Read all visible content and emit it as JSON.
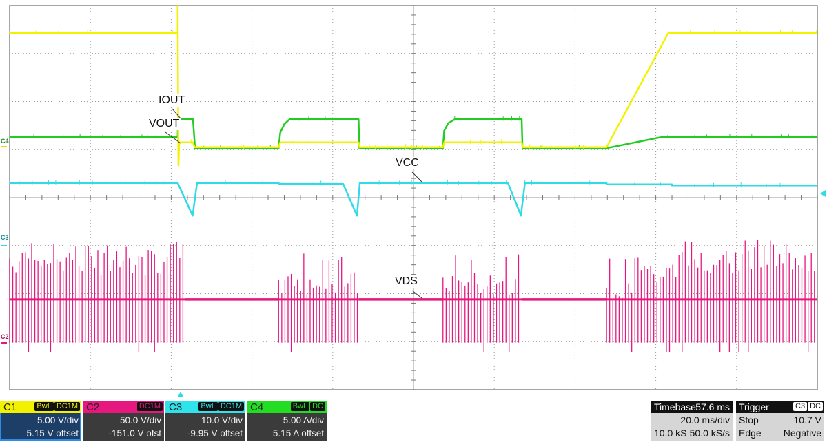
{
  "chart_data": {
    "type": "line",
    "grid": true,
    "divisions": {
      "horizontal": 10,
      "vertical": 8
    },
    "x": {
      "unit": "ms",
      "range": [
        -42.4,
        157.6
      ],
      "per_div": 20.0
    },
    "series": [
      {
        "name": "C1",
        "label": "VOUT",
        "color": "#f2f200",
        "unit": "V",
        "per_div": 5.0,
        "offset": 5.15,
        "points": [
          [
            -42.4,
            12.0
          ],
          [
            -0.8,
            12.0
          ],
          [
            -0.8,
            14.8
          ],
          [
            -0.6,
            -1.8
          ],
          [
            -0.4,
            0.6
          ],
          [
            3.0,
            0.6
          ],
          [
            3.4,
            0.1
          ],
          [
            24.2,
            0.1
          ],
          [
            24.6,
            0.6
          ],
          [
            44.0,
            0.6
          ],
          [
            44.3,
            0.1
          ],
          [
            64.9,
            0.1
          ],
          [
            65.2,
            0.6
          ],
          [
            84.4,
            0.6
          ],
          [
            84.7,
            0.1
          ],
          [
            105.4,
            0.1
          ],
          [
            120.7,
            12.0
          ],
          [
            157.6,
            12.0
          ]
        ]
      },
      {
        "name": "C2",
        "label": "VDS",
        "color": "#e6177e",
        "unit": "V",
        "per_div": 50.0,
        "offset": -151.0,
        "flat_level": 45,
        "points": [
          [
            1.0,
            45
          ],
          [
            1.2,
            47
          ],
          [
            3.0,
            47
          ],
          [
            3.5,
            45
          ],
          [
            24.2,
            45
          ],
          [
            44.0,
            45
          ],
          [
            64.9,
            45
          ],
          [
            84.4,
            45
          ],
          [
            105.4,
            45
          ]
        ],
        "switching": [
          {
            "from": -42.4,
            "to": 1.0,
            "low": 0,
            "high_start": 88,
            "high_end": 88
          },
          {
            "from": 24.2,
            "to": 44.0,
            "low": 0,
            "high_start": 62,
            "high_end": 62
          },
          {
            "from": 64.9,
            "to": 84.4,
            "low": 0,
            "high_start": 62,
            "high_end": 62
          },
          {
            "from": 105.4,
            "to": 157.6,
            "low": 0,
            "high_start": 50,
            "high_end": 90
          }
        ]
      },
      {
        "name": "C3",
        "label": "VCC",
        "color": "#2fdbe6",
        "unit": "V",
        "per_div": 10.0,
        "offset": -9.95,
        "points": [
          [
            -42.4,
            13.0
          ],
          [
            -0.8,
            13.0
          ],
          [
            2.9,
            6.2
          ],
          [
            4.0,
            13.0
          ],
          [
            24.2,
            13.0
          ],
          [
            24.2,
            12.8
          ],
          [
            40.2,
            12.8
          ],
          [
            43.6,
            6.2
          ],
          [
            44.3,
            13.0
          ],
          [
            81.0,
            13.0
          ],
          [
            84.2,
            6.2
          ],
          [
            85.2,
            13.0
          ],
          [
            105.4,
            13.0
          ],
          [
            105.4,
            12.7
          ],
          [
            121.6,
            12.7
          ],
          [
            121.6,
            12.5
          ],
          [
            157.6,
            12.5
          ]
        ]
      },
      {
        "name": "C4",
        "label": "IOUT",
        "color": "#22cc22",
        "unit": "A",
        "per_div": 5.0,
        "offset": 5.15,
        "points": [
          [
            -42.4,
            1.15
          ],
          [
            -0.8,
            1.15
          ],
          [
            -0.7,
            3.0
          ],
          [
            3.0,
            3.0
          ],
          [
            3.5,
            0
          ],
          [
            24.2,
            0
          ],
          [
            24.6,
            1.6
          ],
          [
            25.6,
            2.5
          ],
          [
            26.9,
            3.0
          ],
          [
            44.0,
            3.0
          ],
          [
            44.2,
            0
          ],
          [
            64.9,
            0
          ],
          [
            65.2,
            1.8
          ],
          [
            66.2,
            2.6
          ],
          [
            67.8,
            3.0
          ],
          [
            84.4,
            3.0
          ],
          [
            84.6,
            0
          ],
          [
            105.4,
            0
          ],
          [
            119.0,
            1.15
          ],
          [
            157.6,
            1.15
          ]
        ]
      }
    ],
    "annotations": [
      "IOUT",
      "VOUT",
      "VCC",
      "VDS"
    ],
    "trigger_time_ms": 0
  },
  "annotations": {
    "iout": "IOUT",
    "vout": "VOUT",
    "vcc": "VCC",
    "vds": "VDS"
  },
  "markers": {
    "c4": "C4",
    "c3": "C3",
    "c2": "C2",
    "c1": "1"
  },
  "channels": [
    {
      "name": "C1",
      "tags": [
        "BwL",
        "DC1M"
      ],
      "scale": "5.00 V/div",
      "offset": "5.15 V offset",
      "color": "#f2f200",
      "selected": true
    },
    {
      "name": "C2",
      "tags": [
        "DC1M"
      ],
      "scale": "50.0 V/div",
      "offset": "-151.0 V ofst",
      "color": "#e6177e"
    },
    {
      "name": "C3",
      "tags": [
        "BwL",
        "DC1M"
      ],
      "scale": "10.0 V/div",
      "offset": "-9.95 V offset",
      "color": "#2fe3ea"
    },
    {
      "name": "C4",
      "tags": [
        "BwL",
        "DC"
      ],
      "scale": "5.00 A/div",
      "offset": "5.15 A offset",
      "color": "#22dd22"
    }
  ],
  "timebase": {
    "label": "Timebase",
    "value": "-57.6 ms",
    "per_div": "20.0 ms/div",
    "samples": "10.0 kS",
    "rate": "50.0 kS/s"
  },
  "trigger": {
    "label": "Trigger",
    "source": "C3",
    "coupling": "DC",
    "mode": "Stop",
    "level": "10.7 V",
    "type": "Edge",
    "slope": "Negative"
  }
}
